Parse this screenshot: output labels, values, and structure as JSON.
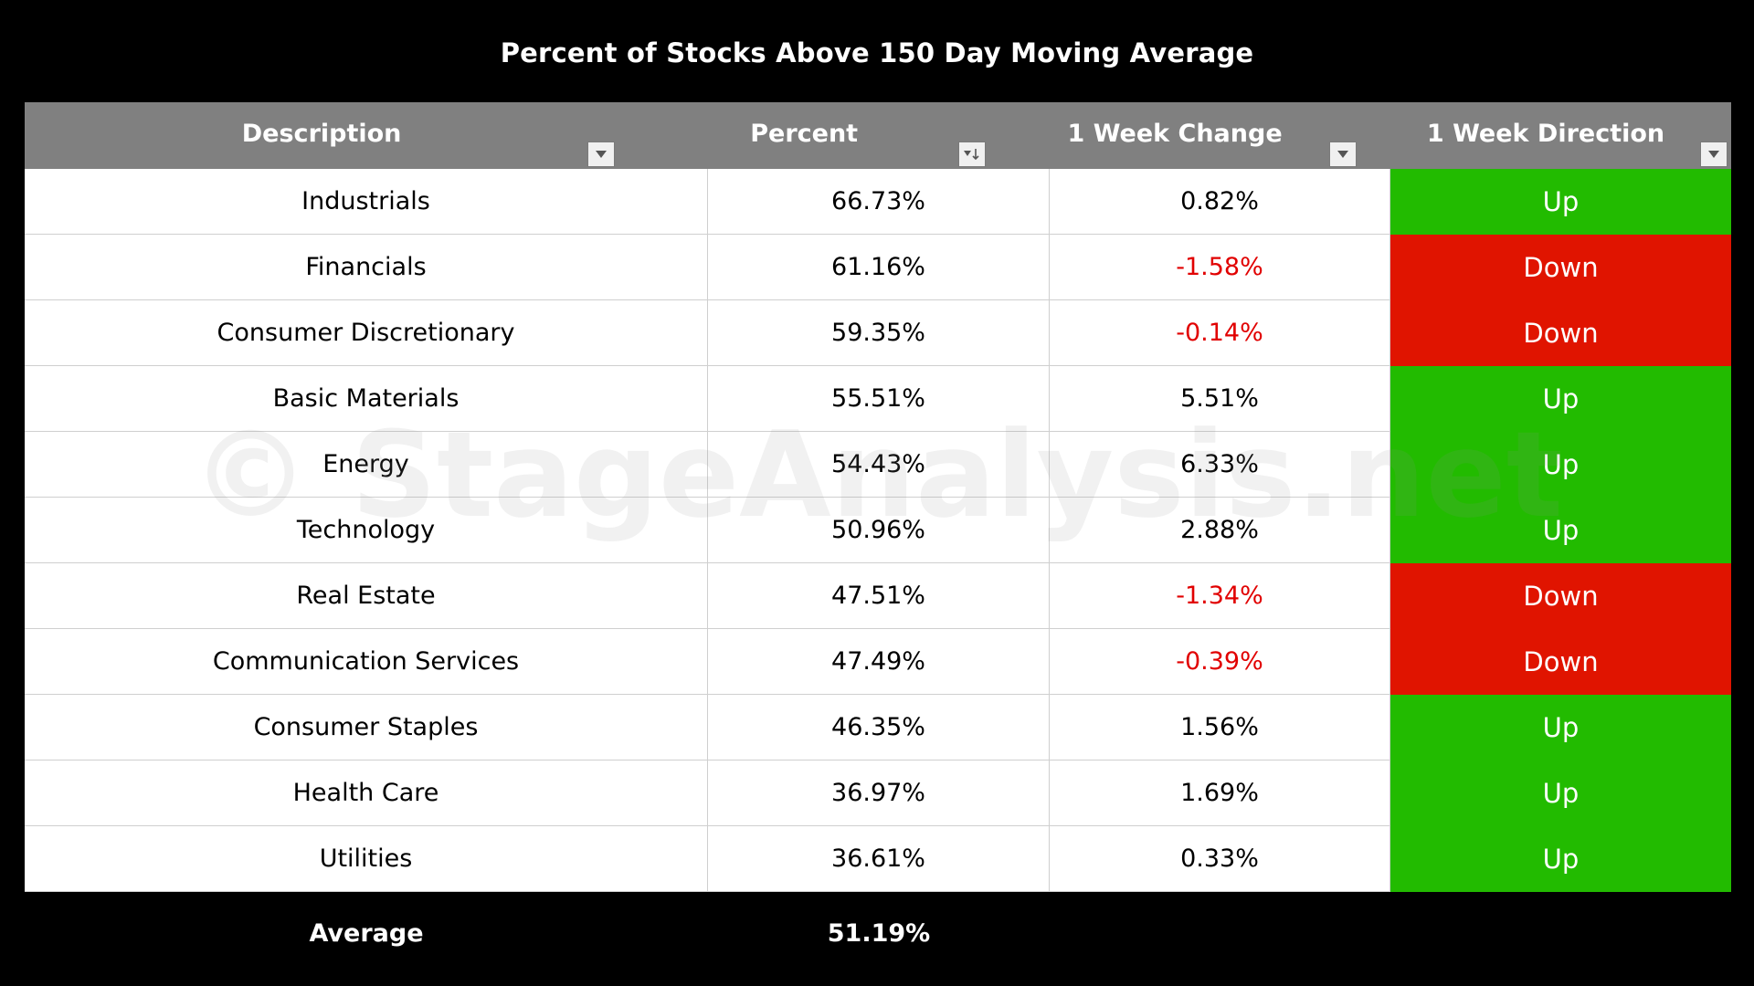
{
  "chart_data": {
    "type": "table",
    "title": "Percent of Stocks Above 150 Day Moving Average",
    "columns": [
      "Description",
      "Percent",
      "1 Week Change",
      "1 Week Direction"
    ],
    "rows": [
      {
        "description": "Industrials",
        "percent": "66.73%",
        "change": "0.82%",
        "direction": "Up"
      },
      {
        "description": "Financials",
        "percent": "61.16%",
        "change": "-1.58%",
        "direction": "Down"
      },
      {
        "description": "Consumer Discretionary",
        "percent": "59.35%",
        "change": "-0.14%",
        "direction": "Down"
      },
      {
        "description": "Basic Materials",
        "percent": "55.51%",
        "change": "5.51%",
        "direction": "Up"
      },
      {
        "description": "Energy",
        "percent": "54.43%",
        "change": "6.33%",
        "direction": "Up"
      },
      {
        "description": "Technology",
        "percent": "50.96%",
        "change": "2.88%",
        "direction": "Up"
      },
      {
        "description": "Real Estate",
        "percent": "47.51%",
        "change": "-1.34%",
        "direction": "Down"
      },
      {
        "description": "Communication Services",
        "percent": "47.49%",
        "change": "-0.39%",
        "direction": "Down"
      },
      {
        "description": "Consumer Staples",
        "percent": "46.35%",
        "change": "1.56%",
        "direction": "Up"
      },
      {
        "description": "Health Care",
        "percent": "36.97%",
        "change": "1.69%",
        "direction": "Up"
      },
      {
        "description": "Utilities",
        "percent": "36.61%",
        "change": "0.33%",
        "direction": "Up"
      }
    ],
    "footer": {
      "label": "Average",
      "percent": "51.19%"
    },
    "watermark": "© StageAnalysis.net"
  },
  "colors": {
    "header_bg": "#808080",
    "up_bg": "#22bb00",
    "down_bg": "#e01400",
    "negative_text": "#e10000"
  },
  "icons": {
    "filter": "filter-dropdown-icon",
    "sort": "sort-descending-icon"
  }
}
